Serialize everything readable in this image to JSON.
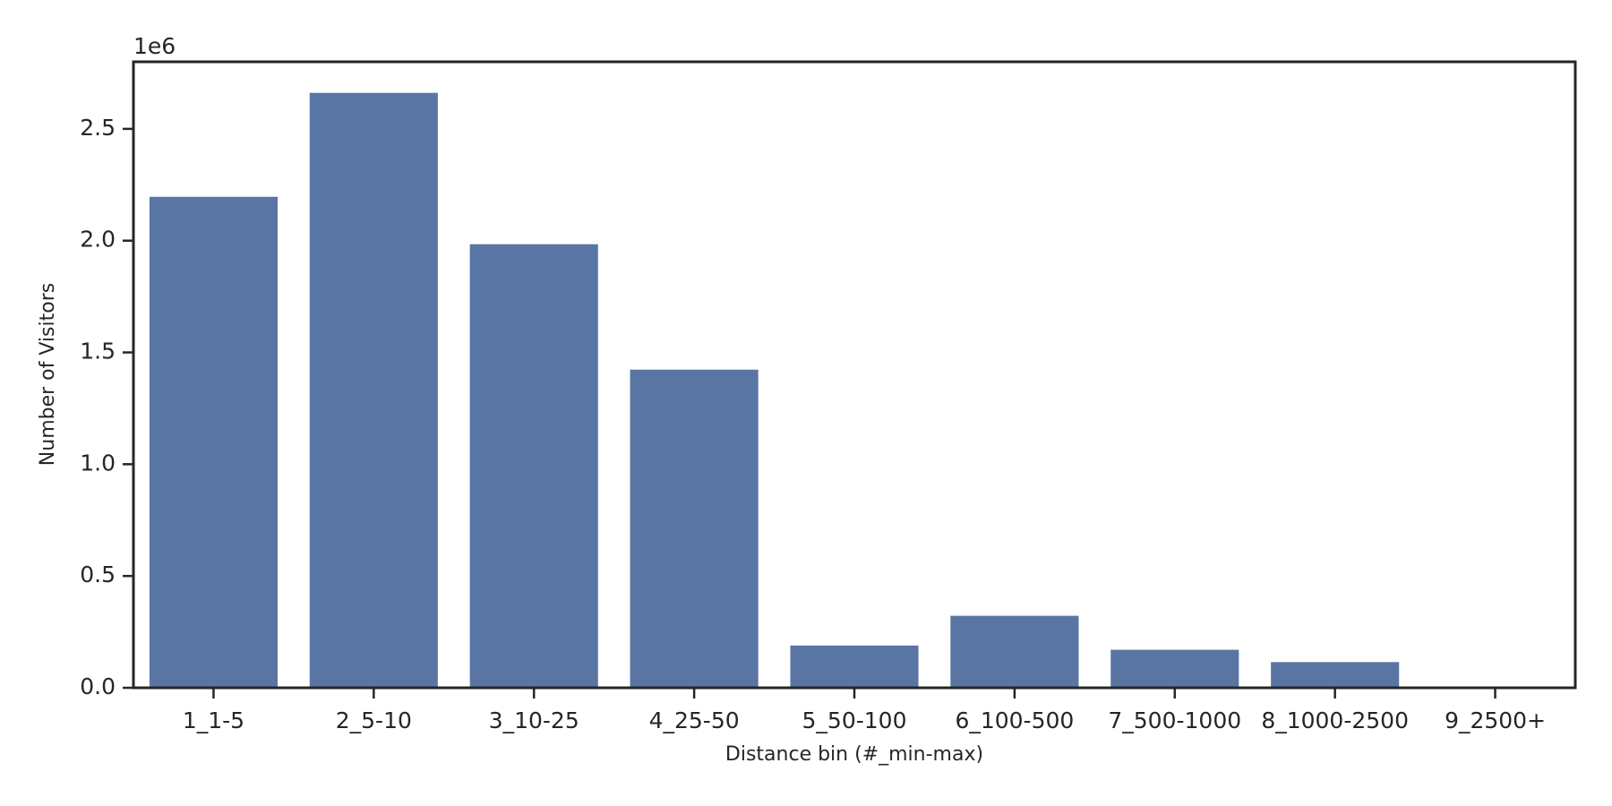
{
  "chart_data": {
    "type": "bar",
    "x_label": "Distance bin (#_min-max)",
    "y_label": "Number of Visitors",
    "y_offset_label": "1e6",
    "categories": [
      "1_1-5",
      "2_5-10",
      "3_10-25",
      "4_25-50",
      "5_50-100",
      "6_100-500",
      "7_500-1000",
      "8_1000-2500",
      "9_2500+"
    ],
    "values": [
      2196000,
      2661000,
      1984000,
      1423000,
      189000,
      322000,
      170000,
      115000,
      0
    ],
    "color": "#5975a4",
    "ylim": [
      0,
      2800000
    ],
    "yticks": [
      {
        "value": 0,
        "label": "0.0"
      },
      {
        "value": 500000,
        "label": "0.5"
      },
      {
        "value": 1000000,
        "label": "1.0"
      },
      {
        "value": 1500000,
        "label": "1.5"
      },
      {
        "value": 2000000,
        "label": "2.0"
      },
      {
        "value": 2500000,
        "label": "2.5"
      }
    ],
    "grid": false
  }
}
